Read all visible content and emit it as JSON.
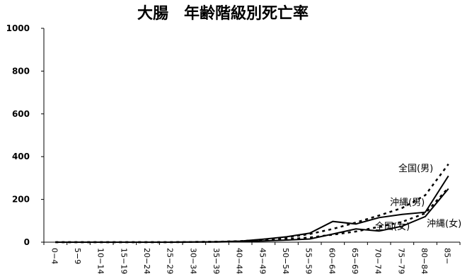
{
  "chart_data": {
    "type": "line",
    "title": "大腸　年齢階級別死亡率",
    "xlabel": "",
    "ylabel": "",
    "ylim": [
      0,
      1000
    ],
    "yticks": [
      "0",
      "200",
      "400",
      "600",
      "800",
      "1000"
    ],
    "grid": false,
    "legend": "none",
    "categories": [
      "0−4",
      "5−9",
      "10−14",
      "15−19",
      "20−24",
      "25−29",
      "30−34",
      "35−39",
      "40−44",
      "45−49",
      "50−54",
      "55−59",
      "60−64",
      "65−69",
      "70−74",
      "75−79",
      "80−84",
      "85−"
    ],
    "series": [
      {
        "name": "全国(男)",
        "style": "dotted",
        "values": [
          0,
          0,
          0,
          0,
          0,
          0,
          1,
          2,
          5,
          12,
          22,
          38,
          62,
          92,
          125,
          160,
          220,
          365
        ]
      },
      {
        "name": "沖縄(男)",
        "style": "solid",
        "values": [
          0,
          0,
          0,
          0,
          0,
          0,
          1,
          2,
          5,
          14,
          25,
          42,
          97,
          85,
          115,
          130,
          140,
          310
        ]
      },
      {
        "name": "全国(女)",
        "style": "dotted",
        "values": [
          0,
          0,
          0,
          0,
          0,
          0,
          1,
          2,
          4,
          8,
          14,
          22,
          35,
          50,
          72,
          95,
          135,
          255
        ]
      },
      {
        "name": "沖縄(女)",
        "style": "solid",
        "values": [
          0,
          0,
          0,
          0,
          0,
          0,
          1,
          1,
          3,
          6,
          10,
          15,
          38,
          62,
          52,
          75,
          120,
          250
        ]
      }
    ]
  },
  "colors": {
    "line": "#000000",
    "background": "#ffffff"
  }
}
